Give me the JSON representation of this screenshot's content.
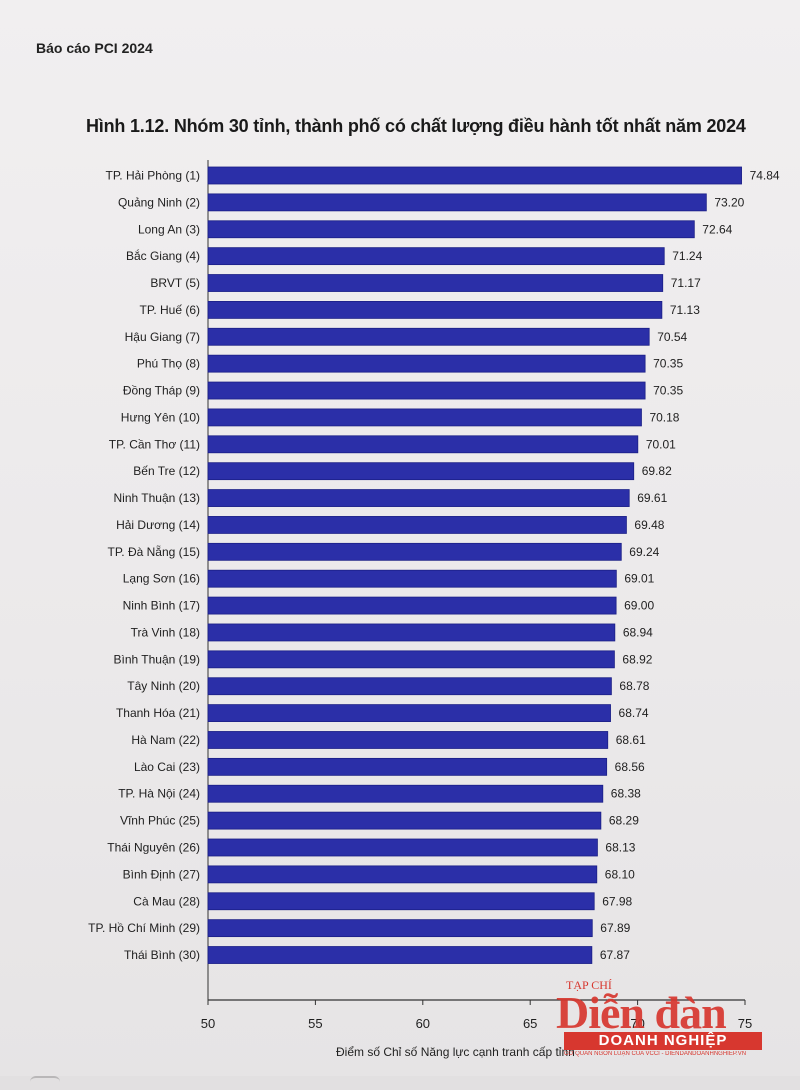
{
  "report_header": "Báo cáo PCI 2024",
  "figure_title": "Hình 1.12. Nhóm 30 tỉnh, thành phố có chất lượng điều hành tốt nhất năm 2024",
  "watermark": {
    "small": "TẠP CHÍ",
    "big": "Diễn đàn",
    "bar": "DOANH NGHIỆP",
    "tagline": "CƠ QUAN NGÔN LUẬN CỦA VCCI - DIENDANDOANHNGHIEP.VN"
  },
  "colors": {
    "bar": "#2b2fa8",
    "bar_edge": "#1b1f86"
  },
  "chart_data": {
    "type": "bar",
    "orientation": "horizontal",
    "title": "Hình 1.12. Nhóm 30 tỉnh, thành phố có chất lượng điều hành tốt nhất năm 2024",
    "xlabel": "Điểm số Chỉ số Năng lực cạnh tranh cấp tỉnh",
    "ylabel": "",
    "xlim": [
      50,
      75
    ],
    "xticks": [
      "50",
      "55",
      "60",
      "65",
      "70",
      "75"
    ],
    "grid": false,
    "categories": [
      "TP. Hải Phòng (1)",
      "Quảng Ninh (2)",
      "Long An (3)",
      "Bắc Giang (4)",
      "BRVT (5)",
      "TP. Huế (6)",
      "Hậu Giang (7)",
      "Phú Thọ (8)",
      "Đồng Tháp (9)",
      "Hưng Yên (10)",
      "TP. Cần Thơ (11)",
      "Bến Tre (12)",
      "Ninh Thuận (13)",
      "Hải Dương (14)",
      "TP. Đà Nẵng (15)",
      "Lạng Sơn (16)",
      "Ninh Bình (17)",
      "Trà Vinh (18)",
      "Bình Thuận (19)",
      "Tây Ninh (20)",
      "Thanh Hóa (21)",
      "Hà Nam (22)",
      "Lào Cai (23)",
      "TP. Hà Nội (24)",
      "Vĩnh Phúc (25)",
      "Thái Nguyên (26)",
      "Bình Định (27)",
      "Cà Mau (28)",
      "TP. Hồ Chí Minh (29)",
      "Thái Bình (30)"
    ],
    "values": [
      74.84,
      73.2,
      72.64,
      71.24,
      71.17,
      71.13,
      70.54,
      70.35,
      70.35,
      70.18,
      70.01,
      69.82,
      69.61,
      69.48,
      69.24,
      69.01,
      69.0,
      68.94,
      68.92,
      68.78,
      68.74,
      68.61,
      68.56,
      68.38,
      68.29,
      68.13,
      68.1,
      67.98,
      67.89,
      67.87
    ],
    "value_labels": [
      "74.84",
      "73.20",
      "72.64",
      "71.24",
      "71.17",
      "71.13",
      "70.54",
      "70.35",
      "70.35",
      "70.18",
      "70.01",
      "69.82",
      "69.61",
      "69.48",
      "69.24",
      "69.01",
      "69.00",
      "68.94",
      "68.92",
      "68.78",
      "68.74",
      "68.61",
      "68.56",
      "68.38",
      "68.29",
      "68.13",
      "68.10",
      "67.98",
      "67.89",
      "67.87"
    ]
  }
}
